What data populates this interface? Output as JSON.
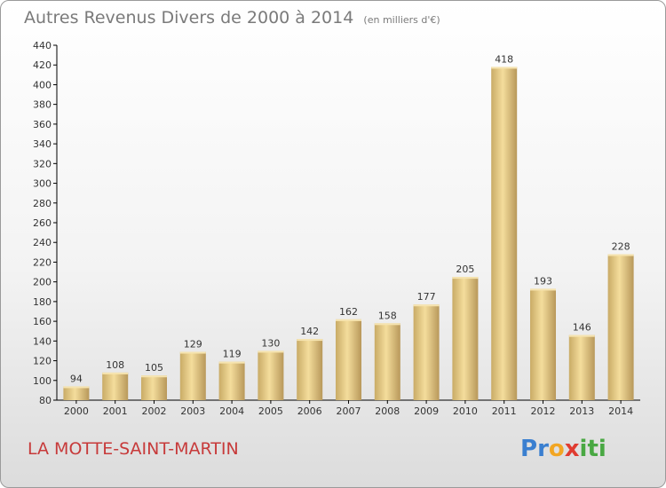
{
  "header": {
    "title": "Autres Revenus Divers de 2000 à 2014",
    "subtitle": "(en milliers d'€)"
  },
  "footer": {
    "place_name": "LA MOTTE-SAINT-MARTIN",
    "logo_letters": [
      "P",
      "r",
      "o",
      "x",
      "i",
      "t",
      "i"
    ],
    "logo_colors": [
      "#3a7fd0",
      "#3a7fd0",
      "#f2a623",
      "#e03c31",
      "#49a843",
      "#49a843",
      "#49a843"
    ]
  },
  "chart_data": {
    "type": "bar",
    "title": "Autres Revenus Divers de 2000 à 2014",
    "subtitle": "(en milliers d'€)",
    "categories": [
      "2000",
      "2001",
      "2002",
      "2003",
      "2004",
      "2005",
      "2006",
      "2007",
      "2008",
      "2009",
      "2010",
      "2011",
      "2012",
      "2013",
      "2014"
    ],
    "values": [
      94,
      108,
      105,
      129,
      119,
      130,
      142,
      162,
      158,
      177,
      205,
      418,
      193,
      146,
      228
    ],
    "ylim": [
      80,
      440
    ],
    "ytick_step": 20,
    "grid": false,
    "bar_color": "#e3c985",
    "axis_color": "#000000"
  }
}
